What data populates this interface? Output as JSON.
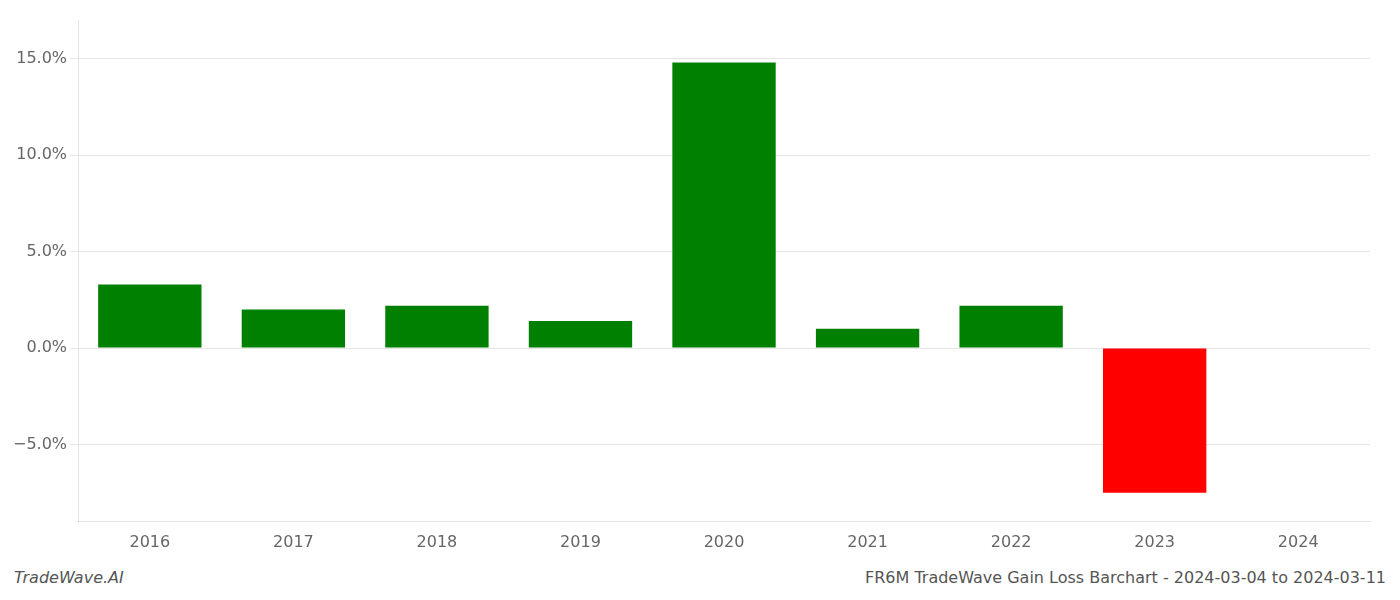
{
  "chart_data": {
    "type": "bar",
    "categories": [
      "2016",
      "2017",
      "2018",
      "2019",
      "2020",
      "2021",
      "2022",
      "2023",
      "2024"
    ],
    "values": [
      0.033,
      0.02,
      0.022,
      0.014,
      0.148,
      0.01,
      0.022,
      -0.075,
      null
    ],
    "colors": [
      "#008000",
      "#008000",
      "#008000",
      "#008000",
      "#008000",
      "#008000",
      "#008000",
      "#ff0000",
      null
    ],
    "ylim": [
      -0.09,
      0.17
    ],
    "yticks": [
      {
        "value": -0.05,
        "label": "−5.0%"
      },
      {
        "value": 0.0,
        "label": "0.0%"
      },
      {
        "value": 0.05,
        "label": "5.0%"
      },
      {
        "value": 0.1,
        "label": "10.0%"
      },
      {
        "value": 0.15,
        "label": "15.0%"
      }
    ],
    "grid": true,
    "annotations": [
      "TradeWave.AI",
      "FR6M TradeWave Gain Loss Barchart - 2024-03-04 to 2024-03-11"
    ]
  }
}
